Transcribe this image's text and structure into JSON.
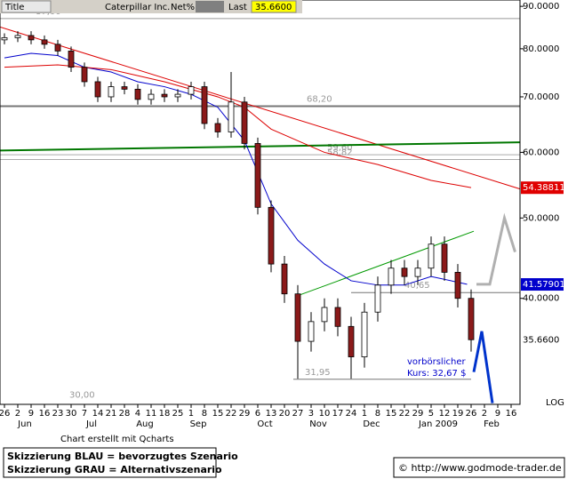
{
  "header": {
    "title": "Title",
    "symbol": "Caterpillar Inc.",
    "field": "Net%",
    "last_label": "Last",
    "last_value": "35.6600"
  },
  "chart_data": {
    "type": "candlestick",
    "x": [
      0,
      1,
      2,
      3,
      4,
      5,
      6,
      7,
      8,
      9,
      10,
      11,
      12,
      13,
      14,
      15,
      16,
      17,
      18,
      19,
      20,
      21,
      22,
      23,
      24,
      25,
      26,
      27,
      28,
      29,
      30,
      31,
      32,
      33,
      34,
      35
    ],
    "open": [
      82,
      82.5,
      83,
      82,
      81,
      79.5,
      76,
      73,
      70,
      72,
      71.5,
      69.5,
      70.5,
      70,
      70.5,
      72,
      65,
      63.5,
      69,
      61.5,
      51.5,
      44,
      40.5,
      35.5,
      37.5,
      39,
      37,
      34,
      38.5,
      41.5,
      43.5,
      42.5,
      43.5,
      46.5,
      43,
      40
    ],
    "high": [
      83.5,
      84,
      84,
      83,
      82,
      80.5,
      77,
      74,
      73,
      73,
      72.5,
      71.5,
      71.5,
      71.5,
      73,
      73,
      66,
      75,
      70,
      62.5,
      52.5,
      45,
      41.5,
      38.5,
      40,
      40,
      38,
      39.5,
      42.5,
      44.5,
      44.5,
      44.5,
      47.5,
      47.5,
      44,
      41
    ],
    "low": [
      81,
      81.5,
      81,
      80,
      78.5,
      75,
      72,
      69,
      69,
      70.5,
      68.5,
      68.5,
      69,
      69,
      69.5,
      64,
      62.5,
      62.5,
      60.5,
      50.5,
      43,
      39.5,
      32,
      34.5,
      36.5,
      36,
      32,
      33,
      37.5,
      40.5,
      41.5,
      41.5,
      42.5,
      42,
      39,
      34.5
    ],
    "close": [
      82.5,
      83,
      82,
      81,
      79.5,
      76,
      73,
      70,
      72,
      71.5,
      69.5,
      70.5,
      70,
      70.5,
      72,
      65,
      63.5,
      69,
      61.5,
      51.5,
      44,
      40.5,
      35.5,
      37.5,
      39,
      37,
      34,
      38.5,
      41.5,
      43.5,
      42.5,
      43.5,
      46.5,
      43,
      40,
      35.66
    ],
    "up_color": "#ffffff",
    "down_color": "#8b1a1a",
    "categories": [
      26,
      2,
      9,
      16,
      23,
      30,
      7,
      14,
      21,
      28,
      4,
      11,
      18,
      25,
      1,
      8,
      15,
      22,
      29,
      6,
      13,
      20,
      27,
      3,
      10,
      17,
      24,
      1,
      8,
      15,
      22,
      29,
      5,
      12,
      19,
      26,
      2,
      9,
      16
    ],
    "months": [
      "Jun",
      "Jul",
      "Aug",
      "Sep",
      "Oct",
      "Nov",
      "Dec",
      "Jan 2009",
      "Feb"
    ],
    "xlim": [
      -0.3333,
      38.6667
    ],
    "ylim": [
      29.8,
      91.6
    ],
    "log_scale": true,
    "yticks": [
      {
        "value": 90,
        "label": "90.0000"
      },
      {
        "value": 80,
        "label": "80.0000"
      },
      {
        "value": 70,
        "label": "70.0000"
      },
      {
        "value": 60,
        "label": "60.0000"
      },
      {
        "value": 50,
        "label": "50.0000"
      },
      {
        "value": 40,
        "label": "40.0000"
      }
    ],
    "moving_averages": [
      {
        "color": "#0000cc",
        "x": [
          0,
          2,
          4,
          6,
          8,
          10,
          12,
          14,
          16,
          18,
          20,
          22,
          24,
          26,
          28,
          30,
          32,
          34.7
        ],
        "values": [
          78,
          79,
          78.5,
          76,
          75,
          73,
          72,
          70.5,
          68,
          62,
          52,
          47,
          44,
          42,
          41.5,
          41.5,
          42.5,
          41.6
        ]
      },
      {
        "color": "#dd0000",
        "x": [
          0,
          4,
          8,
          12,
          16,
          18,
          20,
          24,
          28,
          32,
          35
        ],
        "values": [
          76,
          76.5,
          75.5,
          73,
          70,
          68,
          64,
          60,
          58,
          55.5,
          54.4
        ]
      }
    ],
    "trendlines": [
      {
        "color": "#dd0000",
        "x": [
          -0.3333,
          38.6667
        ],
        "values": [
          85,
          54.2
        ]
      },
      {
        "color": "#007700",
        "x": [
          -0.3333,
          38.6667
        ],
        "values": [
          60.3,
          61.7
        ]
      },
      {
        "color": "#009900",
        "x": [
          22,
          35.2
        ],
        "values": [
          40.3,
          48.2
        ]
      }
    ],
    "levels": [
      {
        "value": 87,
        "label": "87,00"
      },
      {
        "value": 68.2,
        "label": "68,20"
      },
      {
        "value": 59.6,
        "label": "59,60"
      },
      {
        "value": 58.82,
        "label": "58,82"
      },
      {
        "value": 40.65,
        "label": "40,65"
      },
      {
        "value": 31.95,
        "label": "31,95"
      },
      {
        "value": 30,
        "label": "30,00"
      }
    ],
    "price_markers": [
      {
        "value": 54.38811,
        "color": "#e00000"
      },
      {
        "value": 41.57901,
        "color": "#0000cc"
      },
      {
        "value": 35.66,
        "label": "35.6600",
        "color": "#ffffff"
      }
    ],
    "scenarios": [
      {
        "color": "#0033cc",
        "x": [
          35.2,
          35.8,
          36.6
        ],
        "values": [
          32.6,
          36.5,
          29.9
        ]
      },
      {
        "color": "#b0b0b0",
        "x": [
          35.4,
          36.4,
          37.5,
          38.3
        ],
        "values": [
          41.6,
          41.6,
          50,
          45.5
        ]
      }
    ],
    "annotation": [
      "vorbörslicher",
      "Kurs:  32,67 $"
    ],
    "scale_label": "LOG",
    "credit": "Chart erstellt mit Qcharts"
  },
  "footer": {
    "legend": [
      "Skizzierung BLAU = bevorzugtes Szenario",
      "Skizzierung GRAU = Alternativszenario"
    ],
    "copyright": "© http://www.godmode-trader.de"
  }
}
